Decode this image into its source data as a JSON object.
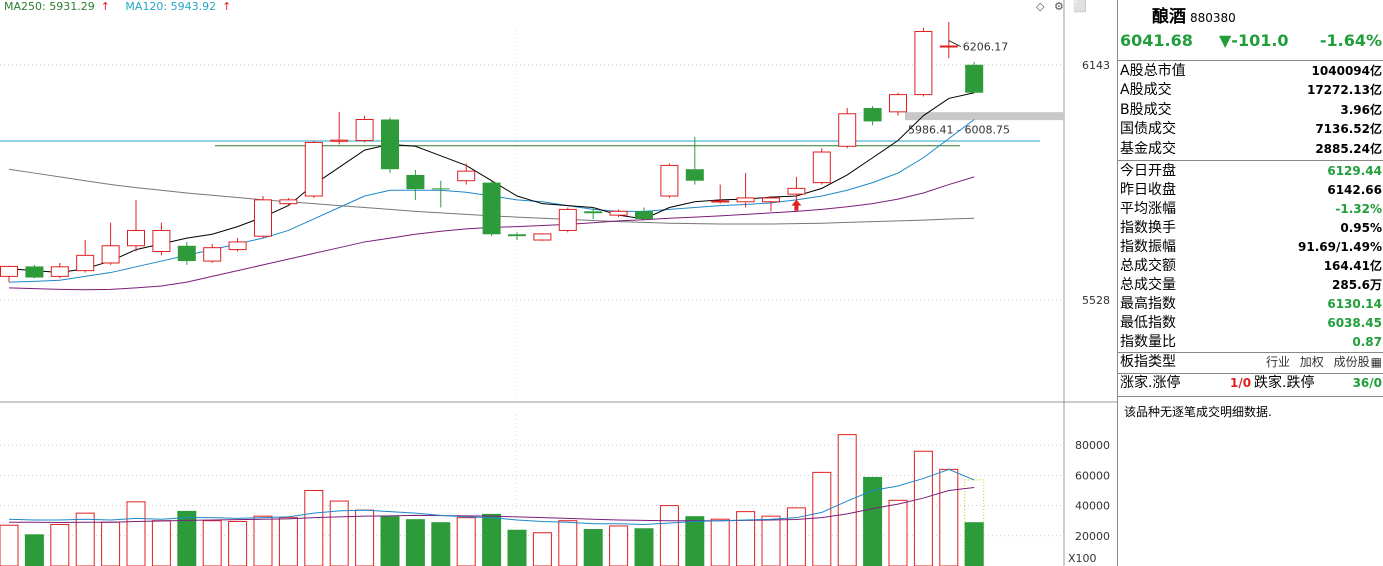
{
  "legend": {
    "ma250": "MA250: 5931.29",
    "ma120": "MA120: 5943.92",
    "arrow": "↑"
  },
  "corner_icons": [
    "diamond-icon",
    "gear-icon",
    "expand-icon"
  ],
  "annotations": {
    "peak_label": "6206.17",
    "range_label": "5986.41 - 6008.75",
    "x100": "X100"
  },
  "colors": {
    "up": "#e02020",
    "down": "#2e9b3a",
    "ma5": "#000000",
    "ma10": "#1e88c8",
    "ma20": "#7b1f7b",
    "ma60": "#777777",
    "ma250": "#2e7d32",
    "ma120": "#26a6c8"
  },
  "chart_data": [
    {
      "type": "candlestick",
      "ylim": [
        5280,
        6260
      ],
      "yticks": [
        5528,
        6143
      ],
      "candles": [
        {
          "o": 5590,
          "c": 5616,
          "h": 5618,
          "l": 5575
        },
        {
          "o": 5616,
          "c": 5587,
          "h": 5620,
          "l": 5585
        },
        {
          "o": 5590,
          "c": 5615,
          "h": 5625,
          "l": 5585
        },
        {
          "o": 5605,
          "c": 5645,
          "h": 5685,
          "l": 5600
        },
        {
          "o": 5625,
          "c": 5670,
          "h": 5730,
          "l": 5620
        },
        {
          "o": 5670,
          "c": 5710,
          "h": 5790,
          "l": 5655
        },
        {
          "o": 5655,
          "c": 5710,
          "h": 5730,
          "l": 5645
        },
        {
          "o": 5670,
          "c": 5630,
          "h": 5680,
          "l": 5620
        },
        {
          "o": 5630,
          "c": 5665,
          "h": 5675,
          "l": 5625
        },
        {
          "o": 5660,
          "c": 5680,
          "h": 5690,
          "l": 5655
        },
        {
          "o": 5695,
          "c": 5790,
          "h": 5800,
          "l": 5690
        },
        {
          "o": 5780,
          "c": 5790,
          "h": 5795,
          "l": 5775
        },
        {
          "o": 5800,
          "c": 5940,
          "h": 5945,
          "l": 5795
        },
        {
          "o": 5943,
          "c": 5946,
          "h": 6020,
          "l": 5935
        },
        {
          "o": 5945,
          "c": 6000,
          "h": 6010,
          "l": 5940
        },
        {
          "o": 6000,
          "c": 5870,
          "h": 6005,
          "l": 5860
        },
        {
          "o": 5855,
          "c": 5818,
          "h": 5868,
          "l": 5790
        },
        {
          "o": 5820,
          "c": 5818,
          "h": 5840,
          "l": 5770
        },
        {
          "o": 5840,
          "c": 5865,
          "h": 5885,
          "l": 5830
        },
        {
          "o": 5835,
          "c": 5700,
          "h": 5840,
          "l": 5695
        },
        {
          "o": 5700,
          "c": 5695,
          "h": 5705,
          "l": 5685
        },
        {
          "o": 5685,
          "c": 5701,
          "h": 5703,
          "l": 5683
        },
        {
          "o": 5710,
          "c": 5765,
          "h": 5770,
          "l": 5705
        },
        {
          "o": 5760,
          "c": 5755,
          "h": 5770,
          "l": 5740
        },
        {
          "o": 5750,
          "c": 5760,
          "h": 5765,
          "l": 5745
        },
        {
          "o": 5760,
          "c": 5740,
          "h": 5770,
          "l": 5738
        },
        {
          "o": 5800,
          "c": 5880,
          "h": 5885,
          "l": 5795
        },
        {
          "o": 5870,
          "c": 5840,
          "h": 5955,
          "l": 5830
        },
        {
          "o": 5785,
          "c": 5787,
          "h": 5830,
          "l": 5780
        },
        {
          "o": 5785,
          "c": 5795,
          "h": 5860,
          "l": 5770
        },
        {
          "o": 5785,
          "c": 5795,
          "h": 5800,
          "l": 5760
        },
        {
          "o": 5805,
          "c": 5820,
          "h": 5850,
          "l": 5790
        },
        {
          "o": 5835,
          "c": 5915,
          "h": 5925,
          "l": 5830
        },
        {
          "o": 5930,
          "c": 6015,
          "h": 6030,
          "l": 5925
        },
        {
          "o": 6030,
          "c": 5995,
          "h": 6035,
          "l": 5985
        },
        {
          "o": 6020,
          "c": 6065,
          "h": 6070,
          "l": 6010
        },
        {
          "o": 6065,
          "c": 6230,
          "h": 6240,
          "l": 6060
        },
        {
          "o": 6190,
          "c": 6192,
          "h": 6255,
          "l": 6160
        },
        {
          "o": 6143,
          "c": 6070,
          "h": 6150,
          "l": 6068
        }
      ],
      "ma5": [
        5610,
        5605,
        5600,
        5610,
        5630,
        5660,
        5675,
        5690,
        5700,
        5720,
        5745,
        5775,
        5830,
        5875,
        5920,
        5935,
        5930,
        5905,
        5880,
        5840,
        5800,
        5780,
        5775,
        5770,
        5750,
        5740,
        5770,
        5785,
        5790,
        5792,
        5797,
        5800,
        5820,
        5855,
        5900,
        5945,
        6010,
        6055,
        6070
      ],
      "ma10": [
        5575,
        5577,
        5580,
        5590,
        5600,
        5615,
        5630,
        5645,
        5660,
        5675,
        5690,
        5710,
        5740,
        5770,
        5800,
        5815,
        5815,
        5815,
        5810,
        5800,
        5790,
        5785,
        5775,
        5765,
        5760,
        5760,
        5765,
        5770,
        5775,
        5778,
        5782,
        5790,
        5800,
        5815,
        5835,
        5860,
        5900,
        5950,
        6000
      ],
      "ma20": [
        5560,
        5558,
        5556,
        5555,
        5556,
        5560,
        5565,
        5575,
        5590,
        5605,
        5620,
        5635,
        5650,
        5665,
        5680,
        5690,
        5700,
        5708,
        5714,
        5718,
        5720,
        5723,
        5726,
        5730,
        5735,
        5738,
        5742,
        5745,
        5748,
        5752,
        5756,
        5760,
        5765,
        5772,
        5780,
        5792,
        5808,
        5830,
        5850
      ],
      "ma60": [
        5870,
        5860,
        5850,
        5840,
        5830,
        5822,
        5815,
        5808,
        5802,
        5796,
        5790,
        5785,
        5780,
        5775,
        5770,
        5765,
        5760,
        5756,
        5752,
        5748,
        5745,
        5742,
        5739,
        5736,
        5733,
        5731,
        5729,
        5728,
        5727,
        5727,
        5727,
        5728,
        5729,
        5731,
        5733,
        5735,
        5737,
        5740,
        5742
      ],
      "ma120": 5943.92,
      "ma250": 5931.29,
      "peak": 6206.17,
      "range_low": 5986.41,
      "range_high": 6008.75
    },
    {
      "type": "bar",
      "ylim": [
        0,
        100000
      ],
      "yticks": [
        20000,
        40000,
        60000,
        80000
      ],
      "unit_label": "X100",
      "volumes": [
        27000,
        21000,
        27500,
        35000,
        29000,
        42500,
        30000,
        36500,
        30000,
        29500,
        33000,
        32000,
        50000,
        43000,
        37000,
        33000,
        31000,
        29000,
        32000,
        34500,
        24000,
        22000,
        30000,
        24500,
        26500,
        25000,
        40000,
        33000,
        31000,
        36000,
        33000,
        38500,
        62000,
        87000,
        59000,
        43500,
        76000,
        64000,
        29000
      ],
      "vol_ma1": [
        31000,
        30500,
        30500,
        31000,
        30500,
        31500,
        31000,
        32000,
        32000,
        31500,
        32000,
        32500,
        35000,
        36500,
        37000,
        36000,
        35000,
        33500,
        32500,
        32000,
        30500,
        29500,
        29000,
        28000,
        28000,
        27500,
        28500,
        29500,
        30000,
        30500,
        31000,
        32000,
        35500,
        43000,
        50000,
        53000,
        58000,
        64000,
        57000
      ],
      "vol_ma2": [
        29000,
        29000,
        28800,
        29000,
        29000,
        29500,
        29800,
        30200,
        30500,
        30700,
        31000,
        31200,
        32000,
        32500,
        33000,
        33200,
        33500,
        33400,
        33200,
        33000,
        32500,
        32000,
        31500,
        31000,
        30500,
        30200,
        30000,
        30000,
        30000,
        30200,
        30500,
        30800,
        32000,
        34500,
        38000,
        41000,
        45000,
        50000,
        52000
      ]
    }
  ],
  "panel": {
    "name": "酿酒",
    "code": "880380",
    "price": "6041.68",
    "change": "▼-101.0",
    "pct": "-1.64%",
    "rows_top": [
      {
        "k": "A股总市值",
        "v": "1040094亿"
      },
      {
        "k": "A股成交",
        "v": "17272.13亿"
      },
      {
        "k": "B股成交",
        "v": "3.96亿"
      },
      {
        "k": "国债成交",
        "v": "7136.52亿"
      },
      {
        "k": "基金成交",
        "v": "2885.24亿"
      }
    ],
    "rows_mid": [
      {
        "k": "今日开盘",
        "v": "6129.44",
        "green": true
      },
      {
        "k": "昨日收盘",
        "v": "6142.66",
        "green": false
      },
      {
        "k": "平均涨幅",
        "v": "-1.32%",
        "green": true
      },
      {
        "k": "指数换手",
        "v": "0.95%",
        "green": false
      },
      {
        "k": "指数振幅",
        "v": "91.69/1.49%",
        "green": false
      },
      {
        "k": "总成交额",
        "v": "164.41亿",
        "green": false
      },
      {
        "k": "总成交量",
        "v": "285.6万",
        "green": false
      },
      {
        "k": "最高指数",
        "v": "6130.14",
        "green": true
      },
      {
        "k": "最低指数",
        "v": "6038.45",
        "green": true
      },
      {
        "k": "指数量比",
        "v": "0.87",
        "green": true
      }
    ],
    "type_label": "板指类型",
    "type_tags": [
      "行业",
      "加权",
      "成份股"
    ],
    "limit_label_up": "涨家.涨停",
    "limit_val_up": "1/0",
    "limit_label_down": "跌家.跌停",
    "limit_val_down": "36/0",
    "note": "该品种无逐笔成交明细数据."
  }
}
